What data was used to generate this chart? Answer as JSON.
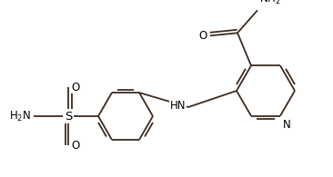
{
  "bg_color": "#ffffff",
  "line_color": "#3d2b1f",
  "text_color": "#000000",
  "bond_width": 1.3,
  "figsize": [
    3.66,
    1.95
  ],
  "dpi": 100,
  "xlim": [
    0,
    366
  ],
  "ylim": [
    0,
    195
  ]
}
